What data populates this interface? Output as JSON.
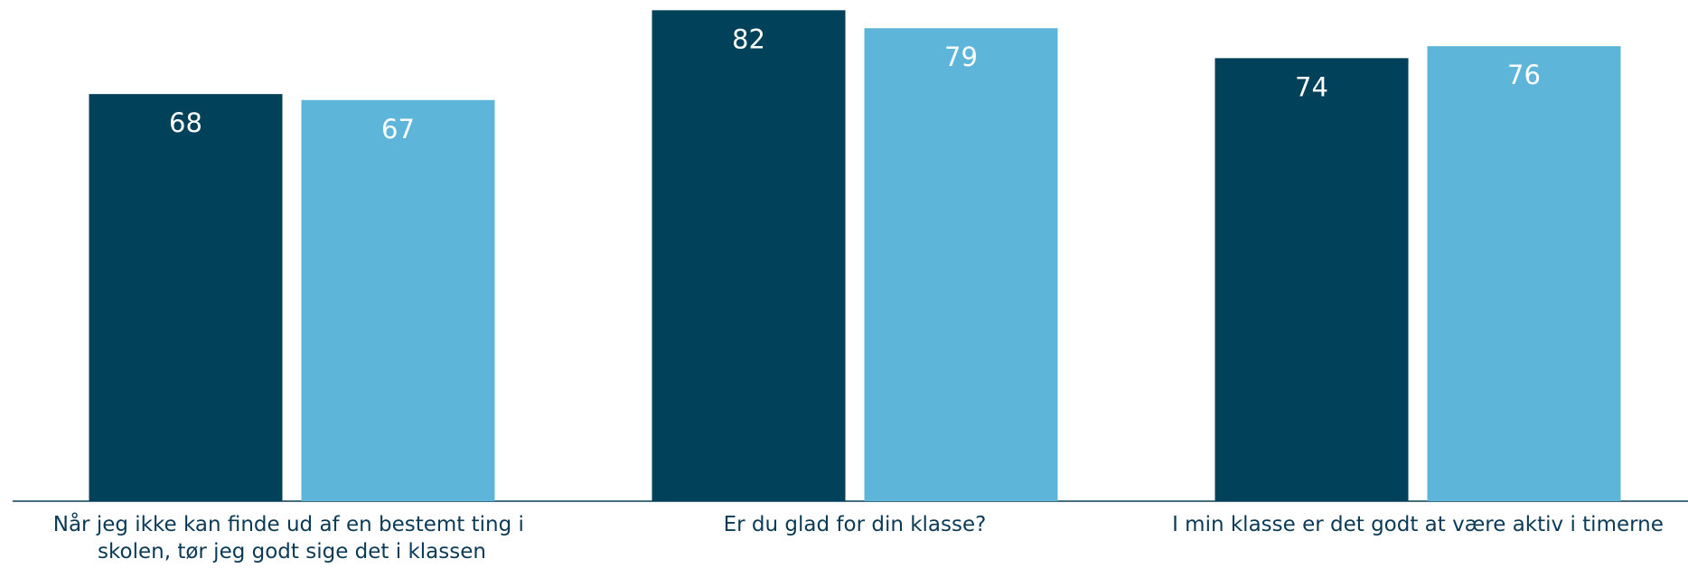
{
  "chart_data": {
    "type": "bar",
    "categories": [
      "Når jeg ikke kan finde ud af en bestemt ting i skolen, tør jeg godt sige det i klassen",
      "Er du glad for din klasse?",
      "I min klasse er det godt at være aktiv i timerne"
    ],
    "series": [
      {
        "color": "#02415a",
        "values": [
          68,
          82,
          74
        ]
      },
      {
        "color": "#5eb5da",
        "values": [
          67,
          79,
          76
        ]
      }
    ]
  }
}
